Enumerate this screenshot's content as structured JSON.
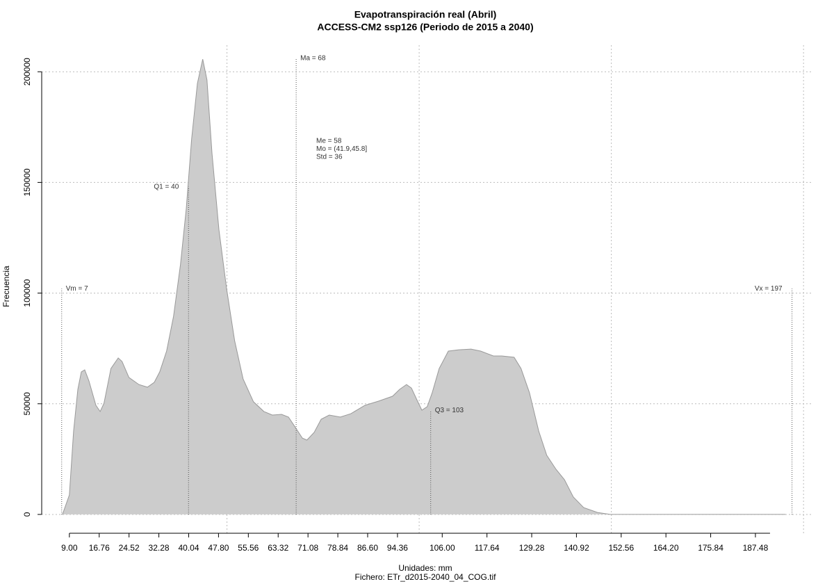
{
  "chart_data": {
    "type": "area",
    "title": "Evapotranspiración real (Abril)",
    "subtitle": "ACCESS-CM2 ssp126 (Periodo de 2015 a 2040)",
    "xlabel": "Unidades: mm",
    "ylabel": "Frecuencia",
    "footnote": "Fichero: ETr_d2015-2040_04_COG.tif",
    "color": "#cccccc",
    "line_color": "#999999",
    "grid": true,
    "x": [
      7.2,
      9,
      10.1,
      11.2,
      12.1,
      13,
      14.1,
      15.9,
      17,
      18,
      19.8,
      21.7,
      22.7,
      24.5,
      27.1,
      29.3,
      31.1,
      32.5,
      34.3,
      36.1,
      37.9,
      39.4,
      40.8,
      42.3,
      43.7,
      44.8,
      46.1,
      47.9,
      49.9,
      52,
      54.2,
      56.9,
      59.6,
      61.8,
      64.2,
      66,
      67.8,
      69.6,
      70.8,
      72.7,
      74.5,
      76.6,
      79.5,
      82.2,
      85.9,
      89.5,
      93.1,
      94.9,
      96.7,
      98,
      99.4,
      100.7,
      102.1,
      103.4,
      105.2,
      107.6,
      110.3,
      113.5,
      116,
      119.3,
      121.5,
      124.7,
      126.5,
      128.7,
      131.1,
      133.2,
      135.6,
      137.8,
      140.1,
      142.8,
      146.4,
      149.7,
      195.3
    ],
    "y": [
      0,
      8800,
      37700,
      56500,
      64400,
      65300,
      60300,
      49300,
      46500,
      50200,
      65900,
      70700,
      69100,
      61900,
      58700,
      57500,
      59700,
      64400,
      73800,
      89500,
      113000,
      138200,
      169600,
      194700,
      205700,
      196300,
      163300,
      128700,
      102100,
      78500,
      61200,
      50900,
      46500,
      44900,
      45200,
      44000,
      39300,
      34500,
      33600,
      37100,
      43000,
      44900,
      44000,
      45500,
      49300,
      51200,
      53400,
      56500,
      58700,
      57100,
      51800,
      47100,
      48700,
      55000,
      65900,
      73800,
      74400,
      74700,
      73800,
      71600,
      71600,
      71000,
      65900,
      55000,
      37700,
      26700,
      20400,
      15700,
      7900,
      3100,
      900,
      0,
      0
    ],
    "xlim": [
      1.8,
      202.5
    ],
    "ylim": [
      -8500,
      212000
    ],
    "xticks": [
      {
        "value": 9,
        "label": "9.00"
      },
      16.76,
      24.52,
      32.28,
      {
        "value": 40.04,
        "label": "40.04"
      },
      {
        "value": 47.8,
        "label": "47.80"
      },
      55.56,
      63.32,
      71.08,
      78.84,
      {
        "value": 86.6,
        "label": "86.60"
      },
      94.36,
      {
        "value": 106,
        "label": "106.00"
      },
      117.64,
      129.28,
      140.92,
      152.56,
      {
        "value": 164.2,
        "label": "164.20"
      },
      175.84,
      187.48
    ],
    "yticks": [
      0,
      50000,
      100000,
      150000,
      200000
    ],
    "xgrid": [
      50,
      100,
      150,
      200
    ],
    "markers": [
      {
        "label": "Vm = 7",
        "value": 7,
        "top": 102000,
        "anchor": "right"
      },
      {
        "label": "Q1 = 40",
        "value": 40,
        "top": 148000,
        "anchor": "left"
      },
      {
        "label": "Ma = 68",
        "value": 68,
        "top": 206000,
        "anchor": "right"
      },
      {
        "label": "Q3 = 103",
        "value": 103,
        "top": 47000,
        "anchor": "right"
      },
      {
        "label": "Vx = 197",
        "value": 197,
        "top": 102000,
        "anchor": "left"
      }
    ],
    "stats": [
      "Me = 58",
      "Mo = (41.9,45.8]",
      "Std = 36"
    ]
  }
}
